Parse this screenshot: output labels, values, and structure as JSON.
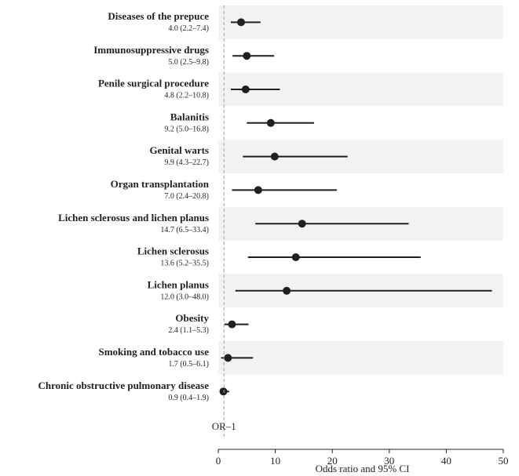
{
  "chart_data": {
    "type": "forest",
    "xlabel": "Odds ratio and 95% CI",
    "xlim": [
      0,
      50
    ],
    "xticks": [
      "0",
      "10",
      "20",
      "30",
      "40",
      "50"
    ],
    "reference_line": {
      "value": 1,
      "label": "OR–1"
    },
    "grid": false,
    "shading": "alternating rows",
    "rows": [
      {
        "name": "Diseases of the prepuce",
        "or": 4.0,
        "lo": 2.2,
        "hi": 7.4,
        "text": "4.0 (2.2–7.4)"
      },
      {
        "name": "Immunosuppressive drugs",
        "or": 5.0,
        "lo": 2.5,
        "hi": 9.8,
        "text": "5.0 (2.5–9.8)"
      },
      {
        "name": "Penile surgical procedure",
        "or": 4.8,
        "lo": 2.2,
        "hi": 10.8,
        "text": "4.8 (2.2–10.8)"
      },
      {
        "name": "Balanitis",
        "or": 9.2,
        "lo": 5.0,
        "hi": 16.8,
        "text": "9.2 (5.0–16.8)"
      },
      {
        "name": "Genital warts",
        "or": 9.9,
        "lo": 4.3,
        "hi": 22.7,
        "text": "9.9 (4.3–22.7)"
      },
      {
        "name": "Organ transplantation",
        "or": 7.0,
        "lo": 2.4,
        "hi": 20.8,
        "text": "7.0 (2.4–20.8)"
      },
      {
        "name": "Lichen sclerosus and lichen planus",
        "or": 14.7,
        "lo": 6.5,
        "hi": 33.4,
        "text": "14.7 (6.5–33.4)"
      },
      {
        "name": "Lichen sclerosus",
        "or": 13.6,
        "lo": 5.2,
        "hi": 35.5,
        "text": "13.6 (5.2–35.5)"
      },
      {
        "name": "Lichen planus",
        "or": 12.0,
        "lo": 3.0,
        "hi": 48.0,
        "text": "12.0 (3.0–48.0)"
      },
      {
        "name": "Obesity",
        "or": 2.4,
        "lo": 1.1,
        "hi": 5.3,
        "text": "2.4 (1.1–5.3)"
      },
      {
        "name": "Smoking and tobacco use",
        "or": 1.7,
        "lo": 0.5,
        "hi": 6.1,
        "text": "1.7 (0.5–6.1)"
      },
      {
        "name": "Chronic obstructive pulmonary disease",
        "or": 0.9,
        "lo": 0.4,
        "hi": 1.9,
        "text": "0.9 (0.4–1.9)"
      }
    ],
    "colors": {
      "shade": "#f1f2f2",
      "ink": "#231f20",
      "ref_line": "#9d9fa2"
    }
  }
}
